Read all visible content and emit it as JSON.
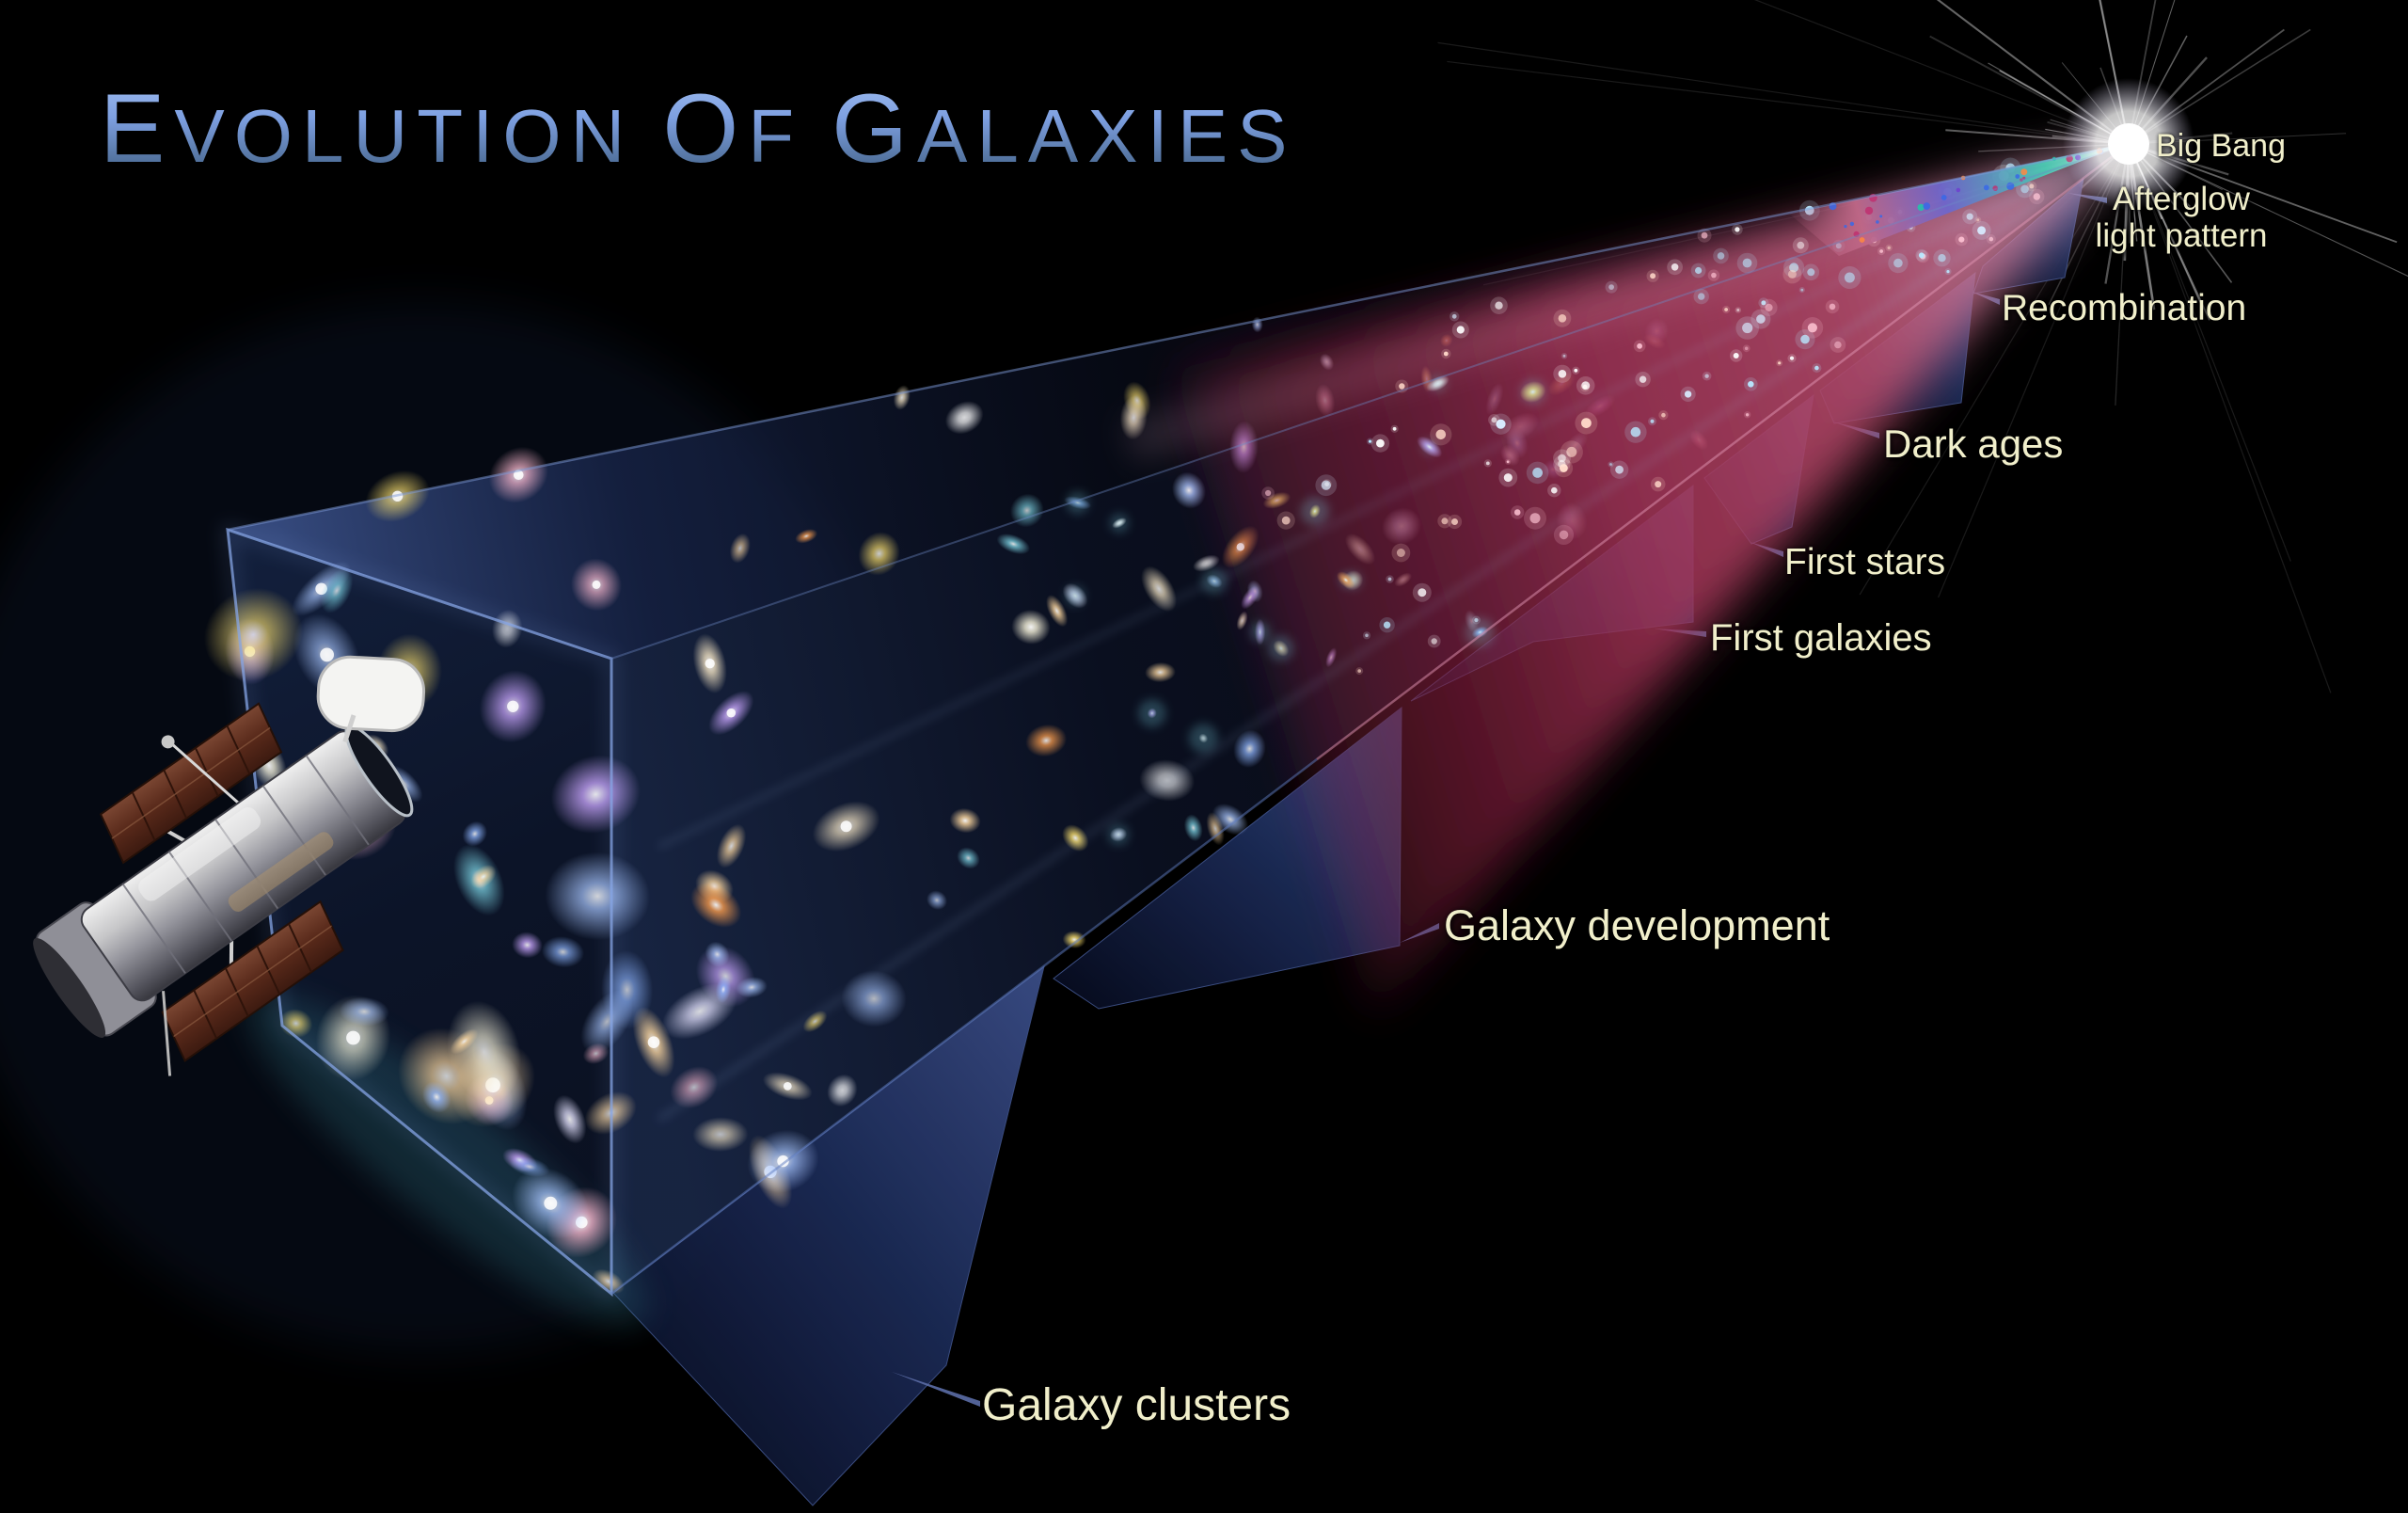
{
  "title": "Evolution of Galaxies",
  "stages": [
    {
      "id": "big-bang",
      "label": "Big Bang"
    },
    {
      "id": "afterglow",
      "label": "Afterglow light pattern"
    },
    {
      "id": "recombination",
      "label": "Recombination"
    },
    {
      "id": "dark-ages",
      "label": "Dark ages"
    },
    {
      "id": "first-stars",
      "label": "First stars"
    },
    {
      "id": "first-galaxies",
      "label": "First galaxies"
    },
    {
      "id": "galaxy-development",
      "label": "Galaxy development"
    },
    {
      "id": "galaxy-clusters",
      "label": "Galaxy clusters"
    }
  ],
  "icons": {
    "telescope": "hubble-space-telescope",
    "origin": "big-bang-starburst"
  },
  "colors": {
    "background": "#000000",
    "title_blue": "#7d9fe0",
    "label_cream": "#f1efcb",
    "cone_blue": "#131f3d",
    "afterglow_red": "#a23355",
    "cmb_teal": "#49c9b2",
    "skirt_navy": "#25356b",
    "glow_lavender": "#c9c3e2",
    "edge_blue": "#86a4e4"
  }
}
